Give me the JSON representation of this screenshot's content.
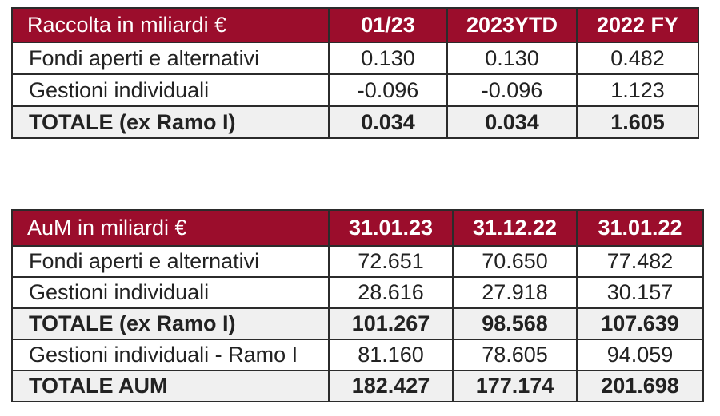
{
  "raccolta": {
    "headers": [
      "Raccolta in miliardi €",
      "01/23",
      "2023YTD",
      "2022 FY"
    ],
    "rows": [
      {
        "label": "Fondi aperti e alternativi",
        "values": [
          "0.130",
          "0.130",
          "0.482"
        ]
      },
      {
        "label": "Gestioni individuali",
        "values": [
          "-0.096",
          "-0.096",
          "1.123"
        ]
      },
      {
        "label": "TOTALE (ex Ramo I)",
        "values": [
          "0.034",
          "0.034",
          "1.605"
        ]
      }
    ]
  },
  "aum": {
    "headers": [
      "AuM in miliardi €",
      "31.01.23",
      "31.12.22",
      "31.01.22"
    ],
    "rows": [
      {
        "label": "Fondi aperti e alternativi",
        "values": [
          "72.651",
          "70.650",
          "77.482"
        ]
      },
      {
        "label": "Gestioni individuali",
        "values": [
          "28.616",
          "27.918",
          "30.157"
        ]
      },
      {
        "label": "TOTALE (ex Ramo I)",
        "values": [
          "101.267",
          "98.568",
          "107.639"
        ]
      },
      {
        "label": "Gestioni individuali - Ramo I",
        "values": [
          "81.160",
          "78.605",
          "94.059"
        ]
      },
      {
        "label": "TOTALE AUM",
        "values": [
          "182.427",
          "177.174",
          "201.698"
        ]
      }
    ]
  },
  "colors": {
    "header_bg": "#9b0d2c",
    "header_text": "#ffffff",
    "total_row_bg": "#f0f0f0",
    "border": "#2b2b2b"
  }
}
